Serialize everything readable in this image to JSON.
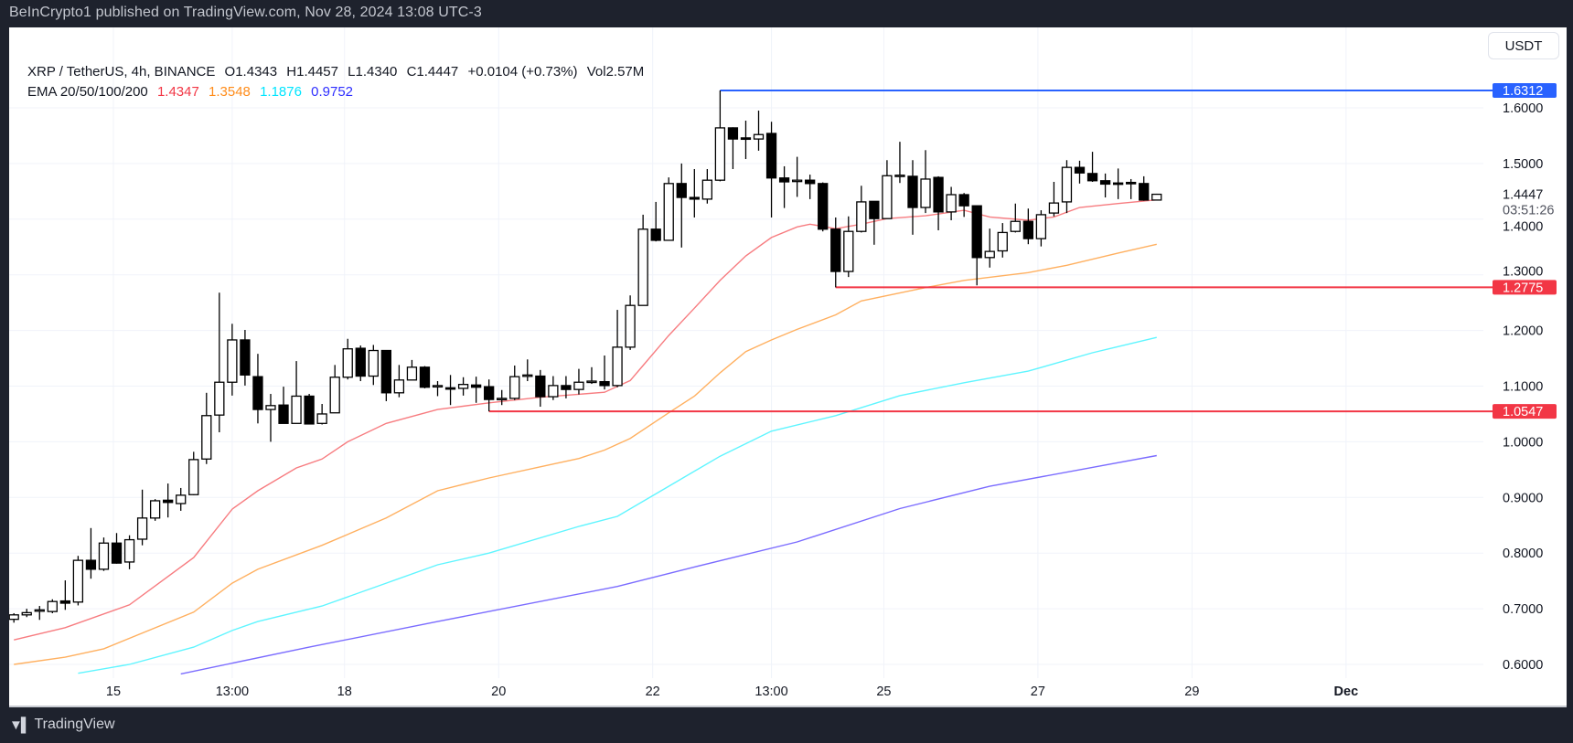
{
  "header": {
    "published": "BeInCrypto1 published on TradingView.com, Nov 28, 2024 13:08 UTC-3"
  },
  "legend": {
    "symbol": "XRP / TetherUS, 4h, BINANCE",
    "open": "O1.4343",
    "high": "H1.4457",
    "low": "L1.4340",
    "close": "C1.4447",
    "change": "+0.0104 (+0.73%)",
    "volume": "Vol2.57M",
    "ema_label": "EMA 20/50/100/200",
    "ema_values": [
      "1.4347",
      "1.3548",
      "1.1876",
      "0.9752"
    ]
  },
  "currency_button": "USDT",
  "branding": {
    "logo_text": "TradingView",
    "logo_mark": "17"
  },
  "colors": {
    "background": "#1e222d",
    "up_fill": "#ffffff",
    "down_fill": "#000000",
    "ema20": "#f77c80",
    "ema50": "#ffb060",
    "ema100": "#5ff5ff",
    "ema200": "#7b6cff",
    "ema20_text": "#f23645",
    "ema50_text": "#ff8c1a",
    "ema100_text": "#00e5ff",
    "ema200_text": "#2e2eff",
    "resistance": "#2962ff",
    "support": "#f23645"
  },
  "chart_data": {
    "type": "candlestick",
    "interval": "4h",
    "ylim": [
      0.58,
      1.69
    ],
    "y_ticks": [
      "0.6000",
      "0.7000",
      "0.8000",
      "0.9000",
      "1.0000",
      "1.1000",
      "1.2000",
      "1.3000",
      "1.4000",
      "1.5000",
      "1.6000"
    ],
    "x_ticks": [
      {
        "label": "15",
        "t": "2024-11-15T00:00"
      },
      {
        "label": "13:00",
        "t": "2024-11-16T13:00"
      },
      {
        "label": "18",
        "t": "2024-11-18T00:00"
      },
      {
        "label": "20",
        "t": "2024-11-20T00:00"
      },
      {
        "label": "22",
        "t": "2024-11-22T00:00"
      },
      {
        "label": "13:00",
        "t": "2024-11-23T13:00"
      },
      {
        "label": "25",
        "t": "2024-11-25T00:00"
      },
      {
        "label": "27",
        "t": "2024-11-27T00:00"
      },
      {
        "label": "29",
        "t": "2024-11-29T00:00"
      },
      {
        "label": "Dec",
        "t": "2024-12-01T00:00"
      }
    ],
    "grid": true,
    "candles_columns": [
      "t",
      "open",
      "high",
      "low",
      "close"
    ],
    "candles": [
      [
        "2024-11-13T17:00",
        0.681,
        0.692,
        0.675,
        0.689
      ],
      [
        "2024-11-13T21:00",
        0.689,
        0.7,
        0.685,
        0.693
      ],
      [
        "2024-11-14T01:00",
        0.696,
        0.705,
        0.68,
        0.698
      ],
      [
        "2024-11-14T05:00",
        0.695,
        0.717,
        0.692,
        0.713
      ],
      [
        "2024-11-14T09:00",
        0.714,
        0.751,
        0.698,
        0.71
      ],
      [
        "2024-11-14T13:00",
        0.712,
        0.795,
        0.706,
        0.787
      ],
      [
        "2024-11-14T17:00",
        0.787,
        0.845,
        0.754,
        0.771
      ],
      [
        "2024-11-14T21:00",
        0.771,
        0.828,
        0.768,
        0.818
      ],
      [
        "2024-11-15T01:00",
        0.818,
        0.836,
        0.781,
        0.782
      ],
      [
        "2024-11-15T05:00",
        0.784,
        0.832,
        0.771,
        0.824
      ],
      [
        "2024-11-15T09:00",
        0.825,
        0.914,
        0.814,
        0.863
      ],
      [
        "2024-11-15T13:00",
        0.863,
        0.897,
        0.858,
        0.894
      ],
      [
        "2024-11-15T17:00",
        0.895,
        0.925,
        0.864,
        0.891
      ],
      [
        "2024-11-15T21:00",
        0.889,
        0.917,
        0.876,
        0.904
      ],
      [
        "2024-11-16T01:00",
        0.905,
        0.982,
        0.904,
        0.968
      ],
      [
        "2024-11-16T05:00",
        0.969,
        1.088,
        0.96,
        1.047
      ],
      [
        "2024-11-16T09:00",
        1.048,
        1.268,
        1.017,
        1.107
      ],
      [
        "2024-11-16T13:00",
        1.107,
        1.212,
        1.083,
        1.183
      ],
      [
        "2024-11-16T17:00",
        1.183,
        1.201,
        1.101,
        1.12
      ],
      [
        "2024-11-16T21:00",
        1.117,
        1.158,
        1.033,
        1.058
      ],
      [
        "2024-11-17T01:00",
        1.058,
        1.086,
        1.0,
        1.065
      ],
      [
        "2024-11-17T05:00",
        1.066,
        1.099,
        1.033,
        1.033
      ],
      [
        "2024-11-17T09:00",
        1.033,
        1.145,
        1.033,
        1.082
      ],
      [
        "2024-11-17T13:00",
        1.082,
        1.086,
        1.032,
        1.032
      ],
      [
        "2024-11-17T17:00",
        1.033,
        1.068,
        1.031,
        1.05
      ],
      [
        "2024-11-17T21:00",
        1.052,
        1.138,
        1.052,
        1.116
      ],
      [
        "2024-11-18T01:00",
        1.116,
        1.185,
        1.112,
        1.167
      ],
      [
        "2024-11-18T05:00",
        1.168,
        1.173,
        1.109,
        1.118
      ],
      [
        "2024-11-18T09:00",
        1.118,
        1.174,
        1.102,
        1.164
      ],
      [
        "2024-11-18T13:00",
        1.164,
        1.164,
        1.073,
        1.088
      ],
      [
        "2024-11-18T17:00",
        1.088,
        1.138,
        1.08,
        1.111
      ],
      [
        "2024-11-18T21:00",
        1.111,
        1.147,
        1.111,
        1.134
      ],
      [
        "2024-11-19T01:00",
        1.134,
        1.136,
        1.096,
        1.098
      ],
      [
        "2024-11-19T05:00",
        1.1,
        1.109,
        1.082,
        1.101
      ],
      [
        "2024-11-19T09:00",
        1.097,
        1.12,
        1.066,
        1.095
      ],
      [
        "2024-11-19T13:00",
        1.096,
        1.116,
        1.083,
        1.103
      ],
      [
        "2024-11-19T17:00",
        1.102,
        1.117,
        1.07,
        1.098
      ],
      [
        "2024-11-19T21:00",
        1.099,
        1.112,
        1.0547,
        1.076
      ],
      [
        "2024-11-20T01:00",
        1.077,
        1.093,
        1.066,
        1.078
      ],
      [
        "2024-11-20T05:00",
        1.078,
        1.137,
        1.075,
        1.117
      ],
      [
        "2024-11-20T09:00",
        1.118,
        1.148,
        1.109,
        1.12
      ],
      [
        "2024-11-20T13:00",
        1.118,
        1.129,
        1.063,
        1.081
      ],
      [
        "2024-11-20T17:00",
        1.081,
        1.118,
        1.075,
        1.101
      ],
      [
        "2024-11-20T21:00",
        1.101,
        1.118,
        1.078,
        1.094
      ],
      [
        "2024-11-21T01:00",
        1.094,
        1.131,
        1.085,
        1.107
      ],
      [
        "2024-11-21T05:00",
        1.108,
        1.134,
        1.104,
        1.109
      ],
      [
        "2024-11-21T09:00",
        1.108,
        1.155,
        1.094,
        1.101
      ],
      [
        "2024-11-21T13:00",
        1.101,
        1.237,
        1.098,
        1.17
      ],
      [
        "2024-11-21T17:00",
        1.17,
        1.263,
        1.165,
        1.245
      ],
      [
        "2024-11-21T21:00",
        1.245,
        1.408,
        1.245,
        1.382
      ],
      [
        "2024-11-22T01:00",
        1.382,
        1.431,
        1.36,
        1.362
      ],
      [
        "2024-11-22T05:00",
        1.362,
        1.475,
        1.362,
        1.464
      ],
      [
        "2024-11-22T09:00",
        1.464,
        1.5,
        1.349,
        1.439
      ],
      [
        "2024-11-22T13:00",
        1.439,
        1.49,
        1.403,
        1.436
      ],
      [
        "2024-11-22T17:00",
        1.436,
        1.49,
        1.428,
        1.47
      ],
      [
        "2024-11-22T21:00",
        1.47,
        1.6312,
        1.468,
        1.564
      ],
      [
        "2024-11-23T01:00",
        1.564,
        1.565,
        1.49,
        1.544
      ],
      [
        "2024-11-23T05:00",
        1.546,
        1.577,
        1.508,
        1.544
      ],
      [
        "2024-11-23T09:00",
        1.544,
        1.595,
        1.523,
        1.552
      ],
      [
        "2024-11-23T13:00",
        1.554,
        1.575,
        1.403,
        1.474
      ],
      [
        "2024-11-23T17:00",
        1.474,
        1.495,
        1.42,
        1.467
      ],
      [
        "2024-11-23T21:00",
        1.469,
        1.512,
        1.44,
        1.47
      ],
      [
        "2024-11-24T01:00",
        1.47,
        1.48,
        1.436,
        1.464
      ],
      [
        "2024-11-24T05:00",
        1.464,
        1.466,
        1.378,
        1.382
      ],
      [
        "2024-11-24T09:00",
        1.382,
        1.403,
        1.2775,
        1.306
      ],
      [
        "2024-11-24T13:00",
        1.306,
        1.405,
        1.296,
        1.378
      ],
      [
        "2024-11-24T17:00",
        1.378,
        1.46,
        1.376,
        1.431
      ],
      [
        "2024-11-24T21:00",
        1.432,
        1.432,
        1.354,
        1.401
      ],
      [
        "2024-11-25T01:00",
        1.401,
        1.506,
        1.401,
        1.478
      ],
      [
        "2024-11-25T05:00",
        1.477,
        1.539,
        1.465,
        1.479
      ],
      [
        "2024-11-25T09:00",
        1.477,
        1.506,
        1.372,
        1.421
      ],
      [
        "2024-11-25T13:00",
        1.421,
        1.524,
        1.411,
        1.472
      ],
      [
        "2024-11-25T17:00",
        1.475,
        1.477,
        1.38,
        1.413
      ],
      [
        "2024-11-25T21:00",
        1.413,
        1.458,
        1.398,
        1.444
      ],
      [
        "2024-11-26T01:00",
        1.444,
        1.447,
        1.404,
        1.424
      ],
      [
        "2024-11-26T05:00",
        1.424,
        1.424,
        1.281,
        1.331
      ],
      [
        "2024-11-26T09:00",
        1.331,
        1.383,
        1.313,
        1.342
      ],
      [
        "2024-11-26T13:00",
        1.343,
        1.393,
        1.331,
        1.376
      ],
      [
        "2024-11-26T17:00",
        1.378,
        1.428,
        1.376,
        1.396
      ],
      [
        "2024-11-26T21:00",
        1.396,
        1.419,
        1.355,
        1.365
      ],
      [
        "2024-11-27T01:00",
        1.365,
        1.416,
        1.351,
        1.408
      ],
      [
        "2024-11-27T05:00",
        1.411,
        1.467,
        1.405,
        1.429
      ],
      [
        "2024-11-27T09:00",
        1.431,
        1.506,
        1.411,
        1.493
      ],
      [
        "2024-11-27T13:00",
        1.493,
        1.505,
        1.464,
        1.483
      ],
      [
        "2024-11-27T17:00",
        1.482,
        1.521,
        1.467,
        1.469
      ],
      [
        "2024-11-27T21:00",
        1.469,
        1.482,
        1.439,
        1.463
      ],
      [
        "2024-11-28T01:00",
        1.465,
        1.491,
        1.436,
        1.464
      ],
      [
        "2024-11-28T05:00",
        1.466,
        1.472,
        1.436,
        1.465
      ],
      [
        "2024-11-28T09:00",
        1.464,
        1.477,
        1.433,
        1.4343
      ],
      [
        "2024-11-28T13:00",
        1.4343,
        1.4457,
        1.434,
        1.4447
      ]
    ],
    "ema": [
      {
        "name": "EMA 20",
        "color_key": "ema20",
        "points": [
          [
            "2024-11-13T17:00",
            0.644
          ],
          [
            "2024-11-14T09:00",
            0.666
          ],
          [
            "2024-11-15T05:00",
            0.707
          ],
          [
            "2024-11-16T01:00",
            0.792
          ],
          [
            "2024-11-16T13:00",
            0.879
          ],
          [
            "2024-11-16T21:00",
            0.912
          ],
          [
            "2024-11-17T09:00",
            0.953
          ],
          [
            "2024-11-17T17:00",
            0.969
          ],
          [
            "2024-11-18T01:00",
            1.0
          ],
          [
            "2024-11-18T13:00",
            1.033
          ],
          [
            "2024-11-19T05:00",
            1.058
          ],
          [
            "2024-11-19T21:00",
            1.07
          ],
          [
            "2024-11-20T13:00",
            1.08
          ],
          [
            "2024-11-21T09:00",
            1.089
          ],
          [
            "2024-11-21T17:00",
            1.11
          ],
          [
            "2024-11-21T21:00",
            1.137
          ],
          [
            "2024-11-22T05:00",
            1.191
          ],
          [
            "2024-11-22T13:00",
            1.24
          ],
          [
            "2024-11-22T21:00",
            1.29
          ],
          [
            "2024-11-23T05:00",
            1.334
          ],
          [
            "2024-11-23T13:00",
            1.367
          ],
          [
            "2024-11-23T21:00",
            1.386
          ],
          [
            "2024-11-24T01:00",
            1.391
          ],
          [
            "2024-11-24T09:00",
            1.383
          ],
          [
            "2024-11-24T17:00",
            1.391
          ],
          [
            "2024-11-25T01:00",
            1.401
          ],
          [
            "2024-11-25T13:00",
            1.406
          ],
          [
            "2024-11-26T01:00",
            1.416
          ],
          [
            "2024-11-26T09:00",
            1.404
          ],
          [
            "2024-11-26T21:00",
            1.398
          ],
          [
            "2024-11-27T05:00",
            1.404
          ],
          [
            "2024-11-27T13:00",
            1.421
          ],
          [
            "2024-11-28T01:00",
            1.428
          ],
          [
            "2024-11-28T13:00",
            1.4347
          ]
        ]
      },
      {
        "name": "EMA 50",
        "color_key": "ema50",
        "points": [
          [
            "2024-11-13T17:00",
            0.6
          ],
          [
            "2024-11-14T09:00",
            0.613
          ],
          [
            "2024-11-14T21:00",
            0.628
          ],
          [
            "2024-11-16T01:00",
            0.694
          ],
          [
            "2024-11-16T13:00",
            0.746
          ],
          [
            "2024-11-16T21:00",
            0.771
          ],
          [
            "2024-11-17T17:00",
            0.814
          ],
          [
            "2024-11-18T13:00",
            0.863
          ],
          [
            "2024-11-19T05:00",
            0.912
          ],
          [
            "2024-11-19T21:00",
            0.935
          ],
          [
            "2024-11-20T13:00",
            0.955
          ],
          [
            "2024-11-21T01:00",
            0.97
          ],
          [
            "2024-11-21T09:00",
            0.985
          ],
          [
            "2024-11-21T17:00",
            1.006
          ],
          [
            "2024-11-22T05:00",
            1.052
          ],
          [
            "2024-11-22T13:00",
            1.082
          ],
          [
            "2024-11-22T21:00",
            1.124
          ],
          [
            "2024-11-23T05:00",
            1.162
          ],
          [
            "2024-11-23T13:00",
            1.183
          ],
          [
            "2024-11-23T21:00",
            1.202
          ],
          [
            "2024-11-24T09:00",
            1.228
          ],
          [
            "2024-11-24T17:00",
            1.253
          ],
          [
            "2024-11-25T13:00",
            1.277
          ],
          [
            "2024-11-26T01:00",
            1.29
          ],
          [
            "2024-11-26T21:00",
            1.304
          ],
          [
            "2024-11-27T09:00",
            1.317
          ],
          [
            "2024-11-28T01:00",
            1.339
          ],
          [
            "2024-11-28T13:00",
            1.3548
          ]
        ]
      },
      {
        "name": "EMA 100",
        "color_key": "ema100",
        "points": [
          [
            "2024-11-14T13:00",
            0.584
          ],
          [
            "2024-11-15T05:00",
            0.6
          ],
          [
            "2024-11-16T01:00",
            0.631
          ],
          [
            "2024-11-16T13:00",
            0.661
          ],
          [
            "2024-11-16T21:00",
            0.677
          ],
          [
            "2024-11-17T17:00",
            0.705
          ],
          [
            "2024-11-18T13:00",
            0.746
          ],
          [
            "2024-11-19T05:00",
            0.779
          ],
          [
            "2024-11-19T21:00",
            0.8
          ],
          [
            "2024-11-21T01:00",
            0.848
          ],
          [
            "2024-11-21T13:00",
            0.866
          ],
          [
            "2024-11-22T05:00",
            0.92
          ],
          [
            "2024-11-22T21:00",
            0.974
          ],
          [
            "2024-11-23T13:00",
            1.019
          ],
          [
            "2024-11-24T09:00",
            1.047
          ],
          [
            "2024-11-25T05:00",
            1.083
          ],
          [
            "2024-11-26T01:00",
            1.106
          ],
          [
            "2024-11-26T21:00",
            1.127
          ],
          [
            "2024-11-27T17:00",
            1.16
          ],
          [
            "2024-11-28T13:00",
            1.1876
          ]
        ]
      },
      {
        "name": "EMA 200",
        "color_key": "ema200",
        "points": [
          [
            "2024-11-15T21:00",
            0.583
          ],
          [
            "2024-11-17T13:00",
            0.631
          ],
          [
            "2024-11-19T05:00",
            0.677
          ],
          [
            "2024-11-19T21:00",
            0.695
          ],
          [
            "2024-11-21T13:00",
            0.74
          ],
          [
            "2024-11-22T13:00",
            0.775
          ],
          [
            "2024-11-23T21:00",
            0.82
          ],
          [
            "2024-11-25T05:00",
            0.88
          ],
          [
            "2024-11-26T09:00",
            0.92
          ],
          [
            "2024-11-28T13:00",
            0.9752
          ]
        ]
      }
    ],
    "levels": [
      {
        "label": "1.6312",
        "value": 1.6312,
        "from": "2024-11-22T21:00",
        "color_key": "resistance"
      },
      {
        "label": "1.2775",
        "value": 1.2775,
        "from": "2024-11-24T09:00",
        "color_key": "support"
      },
      {
        "label": "1.0547",
        "value": 1.0547,
        "from": "2024-11-19T21:00",
        "color_key": "support"
      }
    ],
    "last_price": {
      "label": "1.4447",
      "value": 1.4447,
      "countdown": "03:51:26"
    }
  }
}
